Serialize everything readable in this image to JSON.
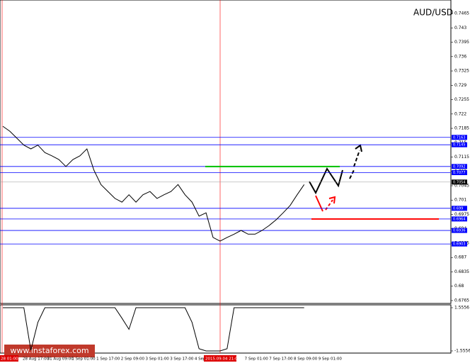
{
  "watermark": "www.instaforex.com",
  "chart_data": [
    {
      "type": "line",
      "title": "AUD/USD",
      "color": "#000000",
      "values": [
        0.719,
        0.7178,
        0.7161,
        0.7144,
        0.7135,
        0.7144,
        0.7126,
        0.7118,
        0.7109,
        0.7092,
        0.7109,
        0.7118,
        0.7135,
        0.7083,
        0.7048,
        0.7031,
        0.7014,
        0.7005,
        0.7023,
        0.7005,
        0.7023,
        0.7031,
        0.7014,
        0.7023,
        0.7031,
        0.7048,
        0.7023,
        0.7005,
        0.6971,
        0.6979,
        0.6919,
        0.691,
        0.6919,
        0.6927,
        0.6936,
        0.6927,
        0.6927,
        0.6936,
        0.6948,
        0.6962,
        0.6979,
        0.6997,
        0.7023,
        0.7048
      ],
      "ylim": [
        0.6758,
        0.7498
      ],
      "yticks": [
        0.7465,
        0.743,
        0.7395,
        0.736,
        0.7325,
        0.729,
        0.7255,
        0.722,
        0.7185,
        0.715,
        0.7115,
        0.708,
        0.7045,
        0.701,
        0.6975,
        0.694,
        0.6905,
        0.687,
        0.6835,
        0.68,
        0.6765
      ],
      "levels": [
        0.7163,
        0.7145,
        0.7092,
        0.7077,
        0.699,
        0.6964,
        0.6936,
        0.6903
      ],
      "level_color": "#0000ff",
      "last_price": 0.7054,
      "highlight_lines": [
        {
          "value": 0.7092,
          "color": "#00c000"
        },
        {
          "value": 0.6964,
          "color": "#ff0000"
        }
      ],
      "x_labels": [
        "28 Aug 17:00",
        "31 Aug 09:00",
        "1 Sep 01:00",
        "1 Sep 17:00",
        "2 Sep 09:00",
        "3 Sep 01:00",
        "3 Sep 17:00",
        "4 Sep 09:00",
        "7 Sep 01:00",
        "7 Sep 17:00",
        "8 Sep 09:00",
        "9 Sep 01:00"
      ],
      "start_label": "28 01:00",
      "cursor_label": "2015.09.04 21:00"
    },
    {
      "type": "line",
      "color": "#000000",
      "values": [
        1.5556,
        1.5556,
        1.5556,
        1.5556,
        -1.5,
        0.5,
        1.5556,
        1.5556,
        1.5556,
        1.5556,
        1.5556,
        1.5556,
        1.5556,
        1.5556,
        1.5556,
        1.5556,
        1.5556,
        0.8,
        0,
        1.5556,
        1.5556,
        1.5556,
        1.5556,
        1.5556,
        1.5556,
        1.5556,
        1.5556,
        0.5,
        -1.4,
        -1.5556,
        -1.5556,
        -1.5556,
        -1.4,
        1.5556,
        1.5556,
        1.5556,
        1.5556,
        1.5556,
        1.5556,
        1.5556,
        1.5556,
        1.5556,
        1.5556,
        1.5556
      ],
      "ylim": [
        -1.71,
        1.76
      ],
      "yticks": [
        1.5556,
        -1.5556
      ]
    }
  ]
}
